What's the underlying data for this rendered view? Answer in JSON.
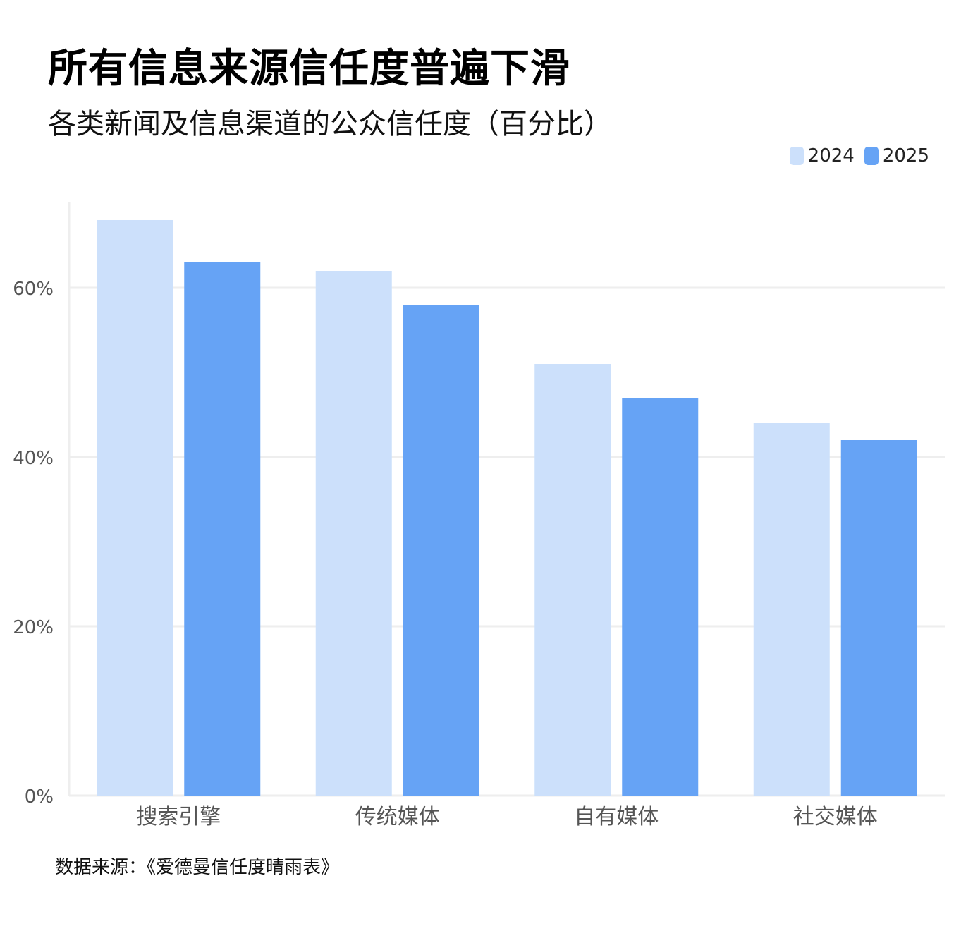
{
  "title": "所有信息来源信任度普遍下滑",
  "subtitle": "各类新闻及信息渠道的公众信任度（百分比）",
  "source": "数据来源：《爱德曼信任度晴雨表》",
  "colors": {
    "series_2024": "#cce0fb",
    "series_2025": "#66a3f5",
    "grid": "#eeeeee",
    "axis_text": "#555555"
  },
  "chart_data": {
    "type": "bar",
    "categories": [
      "搜索引擎",
      "传统媒体",
      "自有媒体",
      "社交媒体"
    ],
    "series": [
      {
        "name": "2024",
        "values": [
          68,
          62,
          51,
          44
        ]
      },
      {
        "name": "2025",
        "values": [
          63,
          58,
          47,
          42
        ]
      }
    ],
    "yticks": [
      "0%",
      "20%",
      "40%",
      "60%"
    ],
    "ytick_values": [
      0,
      20,
      40,
      60
    ],
    "ylim": [
      0,
      70
    ],
    "grid": true,
    "legend_position": "top-right"
  }
}
